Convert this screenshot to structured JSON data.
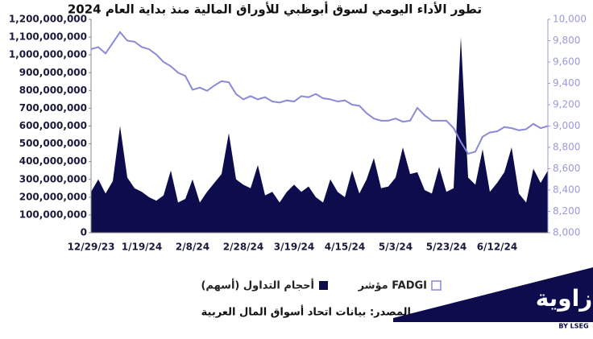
{
  "chart_data": {
    "type": "area_line",
    "title": "تطور الأداء اليومي لسوق أبوظبي للأوراق المالية منذ بداية العام 2024",
    "categories": [
      "12/29/23",
      null,
      null,
      null,
      null,
      null,
      null,
      "1/19/24",
      null,
      null,
      null,
      null,
      null,
      null,
      "2/8/24",
      null,
      null,
      null,
      null,
      null,
      null,
      "2/28/24",
      null,
      null,
      null,
      null,
      null,
      null,
      "3/19/24",
      null,
      null,
      null,
      null,
      null,
      null,
      "4/15/24",
      null,
      null,
      null,
      null,
      null,
      null,
      "5/3/24",
      null,
      null,
      null,
      null,
      null,
      null,
      "5/23/24",
      null,
      null,
      null,
      null,
      null,
      null,
      "6/12/24",
      null,
      null,
      null,
      null,
      null,
      null,
      null
    ],
    "series": [
      {
        "name": "أحجام التداول (أسهم)",
        "color": "#0d0d4d",
        "axis": "y",
        "values": [
          230000000,
          300000000,
          220000000,
          290000000,
          600000000,
          310000000,
          250000000,
          230000000,
          200000000,
          180000000,
          210000000,
          350000000,
          170000000,
          190000000,
          300000000,
          170000000,
          230000000,
          280000000,
          330000000,
          560000000,
          300000000,
          270000000,
          250000000,
          380000000,
          210000000,
          230000000,
          170000000,
          230000000,
          270000000,
          230000000,
          260000000,
          200000000,
          170000000,
          300000000,
          230000000,
          200000000,
          350000000,
          220000000,
          300000000,
          420000000,
          250000000,
          260000000,
          310000000,
          480000000,
          330000000,
          340000000,
          240000000,
          220000000,
          370000000,
          230000000,
          250000000,
          1100000000,
          310000000,
          270000000,
          470000000,
          230000000,
          280000000,
          340000000,
          480000000,
          220000000,
          170000000,
          360000000,
          280000000,
          350000000
        ]
      },
      {
        "name": "مؤشر FADGI",
        "color": "#8a8ad6",
        "axis": "y2",
        "values": [
          9720,
          9740,
          9680,
          9780,
          9880,
          9800,
          9790,
          9740,
          9720,
          9670,
          9600,
          9560,
          9500,
          9470,
          9340,
          9360,
          9330,
          9380,
          9420,
          9410,
          9300,
          9250,
          9280,
          9250,
          9270,
          9230,
          9220,
          9240,
          9230,
          9280,
          9270,
          9300,
          9260,
          9250,
          9230,
          9240,
          9200,
          9190,
          9120,
          9070,
          9050,
          9050,
          9070,
          9040,
          9050,
          9170,
          9100,
          9050,
          9050,
          9050,
          8980,
          8850,
          8740,
          8760,
          8900,
          8940,
          8950,
          8990,
          8980,
          8960,
          8970,
          9020,
          8980,
          9000
        ]
      }
    ],
    "ylim": [
      0,
      1200000000
    ],
    "yticks": [
      0,
      {
        "value": 100000000,
        "label": "100,000,000"
      },
      {
        "value": 200000000,
        "label": "200,000,000"
      },
      {
        "value": 300000000,
        "label": "300,000,000"
      },
      {
        "value": 400000000,
        "label": "400,000,000"
      },
      {
        "value": 500000000,
        "label": "500,000,000"
      },
      {
        "value": 600000000,
        "label": "600,000,000"
      },
      {
        "value": 700000000,
        "label": "700,000,000"
      },
      {
        "value": 800000000,
        "label": "800,000,000"
      },
      {
        "value": 900000000,
        "label": "900,000,000"
      },
      {
        "value": 1000000000,
        "label": "1,000,000,000"
      },
      {
        "value": 1100000000,
        "label": "1,100,000,000"
      },
      {
        "value": 1200000000,
        "label": "1,200,000,000"
      }
    ],
    "y2lim": [
      8000,
      10000
    ],
    "y2ticks": [
      {
        "value": 8000,
        "label": "8,000"
      },
      {
        "value": 8200,
        "label": "8,200"
      },
      {
        "value": 8400,
        "label": "8,400"
      },
      {
        "value": 8600,
        "label": "8,600"
      },
      {
        "value": 8800,
        "label": "8,800"
      },
      {
        "value": 9000,
        "label": "9,000"
      },
      {
        "value": 9200,
        "label": "9,200"
      },
      {
        "value": 9400,
        "label": "9,400"
      },
      {
        "value": 9600,
        "label": "9,600"
      },
      {
        "value": 9800,
        "label": "9,800"
      },
      {
        "value": 10000,
        "label": "10,000"
      }
    ],
    "grid": false,
    "legend": "bottom"
  },
  "footer": {
    "source": "المصدر: بيانات اتحاد أسواق المال العربية",
    "brand": "زاوية",
    "brand_sub": "BY LSEG"
  }
}
